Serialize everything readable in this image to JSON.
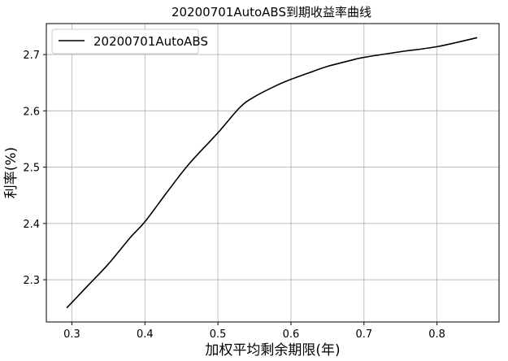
{
  "chart_data": {
    "type": "line",
    "title": "20200701AutoABS到期收益率曲线",
    "xlabel": "加权平均剩余期限(年)",
    "ylabel": "利率(%)",
    "xlim": [
      0.265,
      0.885
    ],
    "ylim": [
      2.225,
      2.755
    ],
    "xticks": [
      0.3,
      0.4,
      0.5,
      0.6,
      0.7,
      0.8
    ],
    "xtick_labels": [
      "0.3",
      "0.4",
      "0.5",
      "0.6",
      "0.7",
      "0.8"
    ],
    "yticks": [
      2.3,
      2.4,
      2.5,
      2.6,
      2.7
    ],
    "ytick_labels": [
      "2.3",
      "2.4",
      "2.5",
      "2.6",
      "2.7"
    ],
    "grid": true,
    "legend": "top-left",
    "series": [
      {
        "name": "20200701AutoABS",
        "color": "#000000",
        "x": [
          0.293,
          0.32,
          0.35,
          0.38,
          0.4,
          0.43,
          0.46,
          0.5,
          0.53,
          0.55,
          0.58,
          0.6,
          0.63,
          0.65,
          0.68,
          0.7,
          0.75,
          0.8,
          0.855
        ],
        "y": [
          2.25,
          2.287,
          2.328,
          2.375,
          2.403,
          2.455,
          2.505,
          2.561,
          2.606,
          2.625,
          2.645,
          2.656,
          2.67,
          2.679,
          2.689,
          2.695,
          2.705,
          2.714,
          2.73
        ]
      }
    ]
  }
}
